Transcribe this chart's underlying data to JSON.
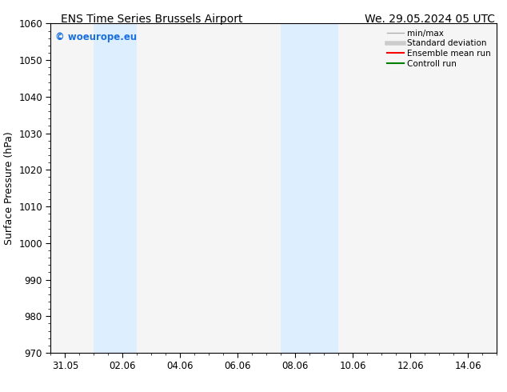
{
  "title_left": "ENS Time Series Brussels Airport",
  "title_right": "We. 29.05.2024 05 UTC",
  "ylabel": "Surface Pressure (hPa)",
  "ylim": [
    970,
    1060
  ],
  "yticks": [
    970,
    980,
    990,
    1000,
    1010,
    1020,
    1030,
    1040,
    1050,
    1060
  ],
  "bg_color": "#ffffff",
  "plot_bg_color": "#f5f5f5",
  "xtick_labels": [
    "31.05",
    "02.06",
    "04.06",
    "06.06",
    "08.06",
    "10.06",
    "12.06",
    "14.06"
  ],
  "shaded_bands": [
    {
      "xmin": 1.5,
      "xmax": 2.5,
      "color": "#ddeeff"
    },
    {
      "xmin": 7.5,
      "xmax": 9.5,
      "color": "#ddeeff"
    }
  ],
  "watermark_text": "© woeurope.eu",
  "watermark_color": "#1a6fde",
  "legend_items": [
    {
      "label": "min/max",
      "color": "#b0b0b0",
      "lw": 1.0
    },
    {
      "label": "Standard deviation",
      "color": "#cccccc",
      "lw": 4.0
    },
    {
      "label": "Ensemble mean run",
      "color": "#ff0000",
      "lw": 1.5
    },
    {
      "label": "Controll run",
      "color": "#008000",
      "lw": 1.5
    }
  ],
  "title_fontsize": 10,
  "axis_label_fontsize": 9,
  "tick_fontsize": 8.5,
  "legend_fontsize": 7.5
}
